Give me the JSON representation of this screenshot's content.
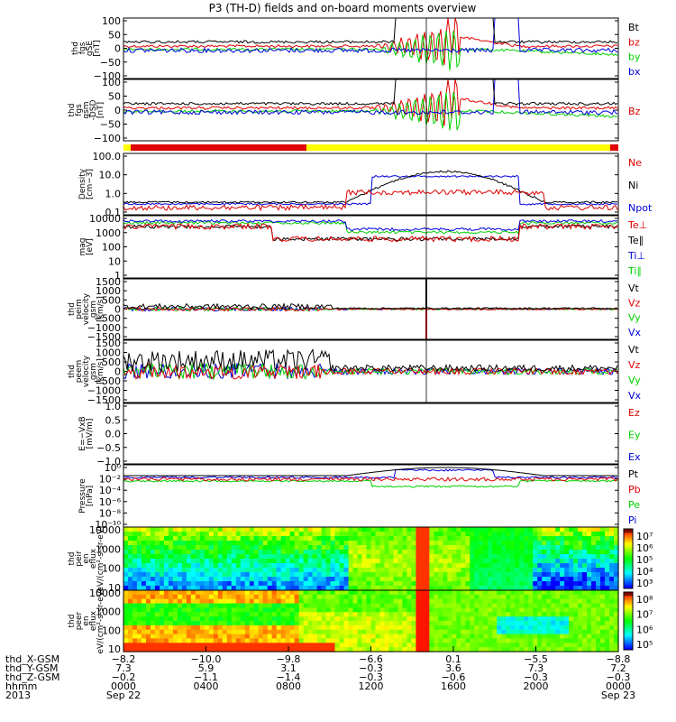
{
  "title": "P3 (TH-D) fields and on-board moments overview",
  "colors": {
    "black": "#000000",
    "red": "#e00000",
    "green": "#00d000",
    "blue": "#0000e0",
    "yellow": "#ffff00"
  },
  "chart_data": [
    {
      "type": "line",
      "id": "fgs-gse",
      "ylabel_lines": [
        "thd",
        "fgs",
        "gSE",
        "[nT]"
      ],
      "yticks": [
        "100",
        "50",
        "0",
        "−50",
        "−100"
      ],
      "ylim": [
        -100,
        100
      ],
      "legend": [
        {
          "label": "Bt",
          "color": "#000000"
        },
        {
          "label": "bz",
          "color": "#e00000"
        },
        {
          "label": "by",
          "color": "#00d000"
        },
        {
          "label": "bx",
          "color": "#0000e0"
        }
      ]
    },
    {
      "type": "line",
      "id": "fgs-gsm",
      "ylabel_lines": [
        "thd",
        "fgs",
        "gsm",
        "-DSD",
        "[nT]"
      ],
      "yticks": [
        "100",
        "50",
        "0",
        "−50",
        "−100"
      ],
      "ylim": [
        -100,
        100
      ],
      "legend": [
        {
          "label": "Bz",
          "color": "#e00000"
        }
      ]
    },
    {
      "type": "line",
      "id": "density",
      "log": true,
      "ylabel_lines": [
        "Density",
        "[cm−3]"
      ],
      "yticks": [
        "100.0",
        "10.0",
        "1.0",
        "0.1"
      ],
      "legend": [
        {
          "label": "Ne",
          "color": "#e00000"
        },
        {
          "label": "Ni",
          "color": "#000000"
        },
        {
          "label": "Npot",
          "color": "#0000e0"
        }
      ]
    },
    {
      "type": "line",
      "id": "temperature",
      "log": true,
      "ylabel_lines": [
        "mag",
        "[eV]"
      ],
      "yticks": [
        "10000",
        "1000",
        "100",
        "10",
        "1"
      ],
      "legend": [
        {
          "label": "Te⊥",
          "color": "#e00000"
        },
        {
          "label": "Te∥",
          "color": "#000000"
        },
        {
          "label": "Ti⊥",
          "color": "#0000e0"
        },
        {
          "label": "Ti∥",
          "color": "#00d000"
        }
      ]
    },
    {
      "type": "line",
      "id": "peim-velocity",
      "ylabel_lines": [
        "thd",
        "peim",
        "velocity",
        "gsm",
        "[km/s]"
      ],
      "yticks": [
        "1500",
        "1000",
        "500",
        "0",
        "−500",
        "−1000",
        "−1500"
      ],
      "ylim": [
        -1500,
        1500
      ],
      "legend": [
        {
          "label": "Vt",
          "color": "#000000"
        },
        {
          "label": "Vz",
          "color": "#e00000"
        },
        {
          "label": "Vy",
          "color": "#00d000"
        },
        {
          "label": "Vx",
          "color": "#0000e0"
        }
      ]
    },
    {
      "type": "line",
      "id": "peem-velocity",
      "ylabel_lines": [
        "thd",
        "peem",
        "velocity",
        "gsm",
        "[km/s]"
      ],
      "yticks": [
        "1500",
        "1000",
        "500",
        "0",
        "−500",
        "−1000",
        "−1500"
      ],
      "ylim": [
        -1500,
        1500
      ],
      "legend": [
        {
          "label": "Vt",
          "color": "#000000"
        },
        {
          "label": "Vz",
          "color": "#e00000"
        },
        {
          "label": "Vy",
          "color": "#00d000"
        },
        {
          "label": "Vx",
          "color": "#0000e0"
        }
      ]
    },
    {
      "type": "line",
      "id": "efield",
      "ylabel_lines": [
        "E=−VxB",
        "[mV/m]"
      ],
      "yticks": [
        "1.0",
        "0.5",
        "0.0",
        "−0.5",
        "−1.0"
      ],
      "ylim": [
        -1,
        1
      ],
      "legend": [
        {
          "label": "Ez",
          "color": "#e00000"
        },
        {
          "label": "Ey",
          "color": "#00d000"
        },
        {
          "label": "Ex",
          "color": "#0000e0"
        }
      ]
    },
    {
      "type": "line",
      "id": "pressure",
      "log": true,
      "ylabel_lines": [
        "Pressure",
        "[nPa]"
      ],
      "yticks": [
        "10⁰",
        "10⁻²",
        "10⁻⁴",
        "10⁻⁶",
        "10⁻⁸",
        "10⁻¹⁰"
      ],
      "legend": [
        {
          "label": "Pt",
          "color": "#000000"
        },
        {
          "label": "Pb",
          "color": "#e00000"
        },
        {
          "label": "Pe",
          "color": "#00d000"
        },
        {
          "label": "Pi",
          "color": "#0000e0"
        }
      ]
    },
    {
      "type": "heatmap",
      "id": "peir-eflux",
      "ylabel_lines": [
        "thd",
        "peir",
        "en",
        "eflux",
        "eV/(cm²-s-sr-eV)"
      ],
      "yticks": [
        "10000",
        "1000",
        "100",
        "10"
      ],
      "colorbar_ticks": [
        "10⁷",
        "10⁶",
        "10⁵",
        "10⁴",
        "10³"
      ]
    },
    {
      "type": "heatmap",
      "id": "peer-eflux",
      "ylabel_lines": [
        "thd",
        "peer",
        "en",
        "eflux",
        "eV/(cm²-s-sr-eV)"
      ],
      "yticks": [
        "10000",
        "1000",
        "100",
        "10"
      ],
      "colorbar_ticks": [
        "10⁸",
        "10⁷",
        "10⁶",
        "10⁵"
      ]
    }
  ],
  "x_axis": {
    "rows": [
      {
        "label": "thd_X-GSM",
        "values": [
          "−8.2",
          "−10.0",
          "−9.8",
          "−6.6",
          "0.1",
          "−5.5",
          "−8.8"
        ]
      },
      {
        "label": "thd_Y-GSM",
        "values": [
          "7.3",
          "5.9",
          "3.1",
          "−0.3",
          "3.6",
          "7.3",
          "7.2"
        ]
      },
      {
        "label": "thd_Z-GSM",
        "values": [
          "−0.2",
          "−1.1",
          "−1.4",
          "−0.3",
          "−0.6",
          "−0.3",
          "−0.3"
        ]
      },
      {
        "label": "hhmm",
        "values": [
          "0000",
          "0400",
          "0800",
          "1200",
          "1600",
          "2000",
          "0000"
        ]
      },
      {
        "label": "2013",
        "values": [
          "Sep 22",
          "",
          "",
          "",
          "",
          "",
          "Sep 23"
        ]
      }
    ]
  }
}
